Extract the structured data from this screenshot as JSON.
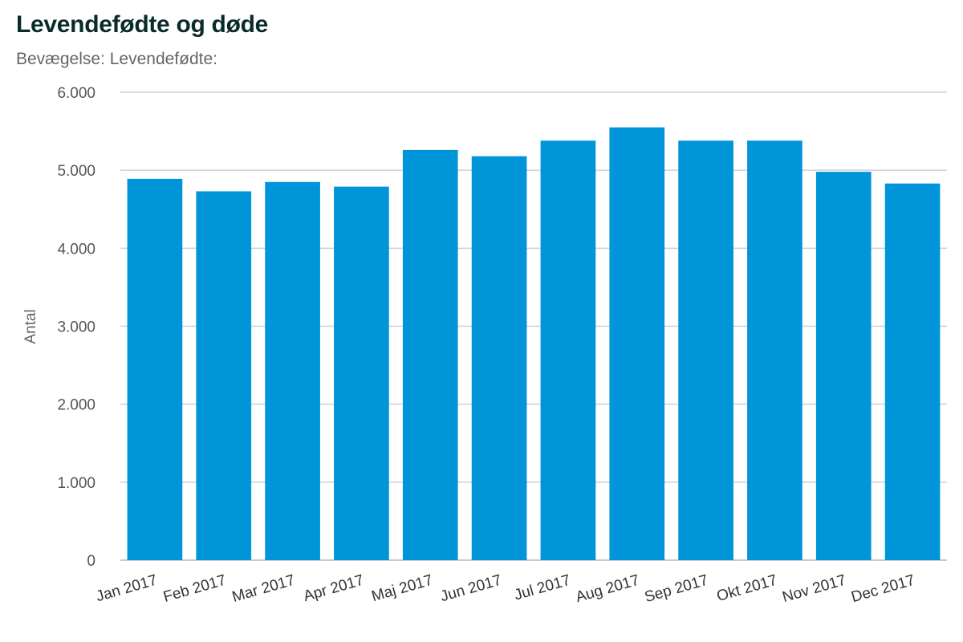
{
  "chart_data": {
    "type": "bar",
    "title": "Levendefødte og døde",
    "subtitle": "Bevægelse: Levendefødte:",
    "xlabel": "",
    "ylabel": "Antal",
    "ylim": [
      0,
      6000
    ],
    "yticks": [
      0,
      1000,
      2000,
      3000,
      4000,
      5000,
      6000
    ],
    "ytick_labels": [
      "0",
      "1.000",
      "2.000",
      "3.000",
      "4.000",
      "5.000",
      "6.000"
    ],
    "categories": [
      "Jan 2017",
      "Feb 2017",
      "Mar 2017",
      "Apr 2017",
      "Maj 2017",
      "Jun 2017",
      "Jul 2017",
      "Aug 2017",
      "Sep 2017",
      "Okt 2017",
      "Nov 2017",
      "Dec 2017"
    ],
    "values": [
      4890,
      4730,
      4850,
      4790,
      5260,
      5180,
      5380,
      5550,
      5380,
      5380,
      4980,
      4830
    ],
    "grid": true,
    "legend": "none",
    "bar_color": "#0095d9",
    "grid_color": "#c5d2dc"
  }
}
